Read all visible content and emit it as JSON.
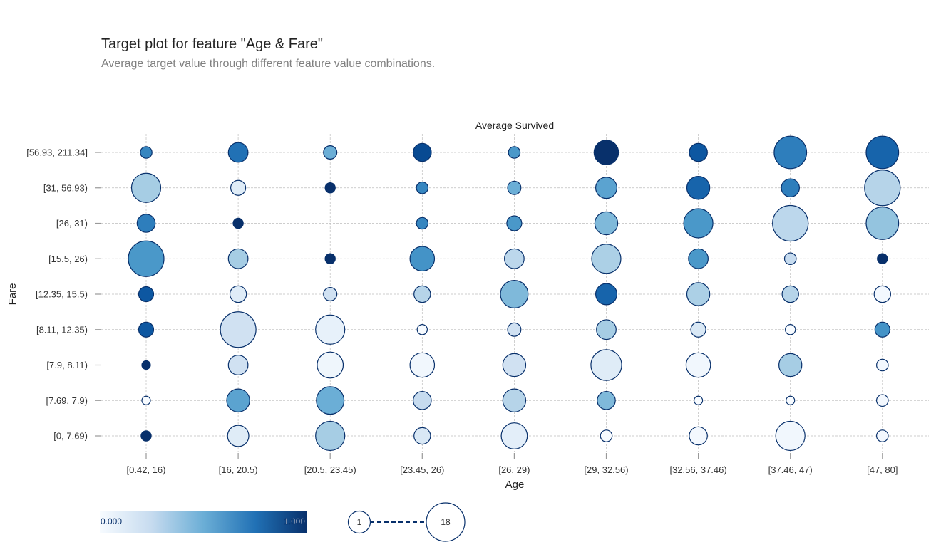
{
  "chart_data": {
    "type": "scatter",
    "title": "Target plot for feature \"Age & Fare\"",
    "subtitle": "Average target value through different feature value combinations.",
    "top_label": "Average Survived",
    "xlabel": "Age",
    "ylabel": "Fare",
    "x_categories": [
      "[0.42, 16)",
      "[16, 20.5)",
      "[20.5, 23.45)",
      "[23.45, 26)",
      "[26, 29)",
      "[29, 32.56)",
      "[32.56, 37.46)",
      "[37.46, 47)",
      "[47, 80]"
    ],
    "y_categories": [
      "[0, 7.69)",
      "[7.69, 7.9)",
      "[7.9, 8.11)",
      "[8.11, 12.35)",
      "[12.35, 15.5)",
      "[15.5, 26)",
      "[26, 31)",
      "[31, 56.93)",
      "[56.93, 211.34]"
    ],
    "color_scale": {
      "min": 0.0,
      "max": 1.0,
      "min_label": "0.000",
      "max_label": "1.000",
      "low_color": "#f7fbff",
      "high_color": "#08306b"
    },
    "size_scale": {
      "min": 1,
      "max": 18,
      "min_label": "1",
      "max_label": "18"
    },
    "grid": true,
    "points": [
      {
        "x": "[0.42, 16)",
        "y": "[0, 7.69)",
        "value": 1.0,
        "count": 2
      },
      {
        "x": "[0.42, 16)",
        "y": "[7.69, 7.9)",
        "value": 0.0,
        "count": 1
      },
      {
        "x": "[0.42, 16)",
        "y": "[7.9, 8.11)",
        "value": 1.0,
        "count": 1
      },
      {
        "x": "[0.42, 16)",
        "y": "[8.11, 12.35)",
        "value": 0.85,
        "count": 5
      },
      {
        "x": "[0.42, 16)",
        "y": "[12.35, 15.5)",
        "value": 0.85,
        "count": 5
      },
      {
        "x": "[0.42, 16)",
        "y": "[15.5, 26)",
        "value": 0.6,
        "count": 18
      },
      {
        "x": "[0.42, 16)",
        "y": "[26, 31)",
        "value": 0.7,
        "count": 7
      },
      {
        "x": "[0.42, 16)",
        "y": "[31, 56.93)",
        "value": 0.35,
        "count": 14
      },
      {
        "x": "[0.42, 16)",
        "y": "[56.93, 211.34]",
        "value": 0.67,
        "count": 3
      },
      {
        "x": "[16, 20.5)",
        "y": "[0, 7.69)",
        "value": 0.12,
        "count": 9
      },
      {
        "x": "[16, 20.5)",
        "y": "[7.69, 7.9)",
        "value": 0.55,
        "count": 10
      },
      {
        "x": "[16, 20.5)",
        "y": "[7.9, 8.11)",
        "value": 0.2,
        "count": 8
      },
      {
        "x": "[16, 20.5)",
        "y": "[8.11, 12.35)",
        "value": 0.2,
        "count": 18
      },
      {
        "x": "[16, 20.5)",
        "y": "[12.35, 15.5)",
        "value": 0.12,
        "count": 6
      },
      {
        "x": "[16, 20.5)",
        "y": "[15.5, 26)",
        "value": 0.35,
        "count": 8
      },
      {
        "x": "[16, 20.5)",
        "y": "[26, 31)",
        "value": 1.0,
        "count": 2
      },
      {
        "x": "[16, 20.5)",
        "y": "[31, 56.93)",
        "value": 0.12,
        "count": 5
      },
      {
        "x": "[16, 20.5)",
        "y": "[56.93, 211.34]",
        "value": 0.75,
        "count": 8
      },
      {
        "x": "[20.5, 23.45)",
        "y": "[0, 7.69)",
        "value": 0.35,
        "count": 14
      },
      {
        "x": "[20.5, 23.45)",
        "y": "[7.69, 7.9)",
        "value": 0.5,
        "count": 13
      },
      {
        "x": "[20.5, 23.45)",
        "y": "[7.9, 8.11)",
        "value": 0.04,
        "count": 12
      },
      {
        "x": "[20.5, 23.45)",
        "y": "[8.11, 12.35)",
        "value": 0.08,
        "count": 14
      },
      {
        "x": "[20.5, 23.45)",
        "y": "[12.35, 15.5)",
        "value": 0.2,
        "count": 4
      },
      {
        "x": "[20.5, 23.45)",
        "y": "[15.5, 26)",
        "value": 1.0,
        "count": 2
      },
      {
        "x": "[20.5, 23.45)",
        "y": "[31, 56.93)",
        "value": 1.0,
        "count": 2
      },
      {
        "x": "[20.5, 23.45)",
        "y": "[56.93, 211.34]",
        "value": 0.5,
        "count": 4
      },
      {
        "x": "[23.45, 26)",
        "y": "[0, 7.69)",
        "value": 0.15,
        "count": 6
      },
      {
        "x": "[23.45, 26)",
        "y": "[7.69, 7.9)",
        "value": 0.25,
        "count": 7
      },
      {
        "x": "[23.45, 26)",
        "y": "[7.9, 8.11)",
        "value": 0.03,
        "count": 11
      },
      {
        "x": "[23.45, 26)",
        "y": "[8.11, 12.35)",
        "value": 0.0,
        "count": 2
      },
      {
        "x": "[23.45, 26)",
        "y": "[12.35, 15.5)",
        "value": 0.3,
        "count": 6
      },
      {
        "x": "[23.45, 26)",
        "y": "[15.5, 26)",
        "value": 0.62,
        "count": 11
      },
      {
        "x": "[23.45, 26)",
        "y": "[26, 31)",
        "value": 0.67,
        "count": 3
      },
      {
        "x": "[23.45, 26)",
        "y": "[31, 56.93)",
        "value": 0.67,
        "count": 3
      },
      {
        "x": "[23.45, 26)",
        "y": "[56.93, 211.34]",
        "value": 0.9,
        "count": 7
      },
      {
        "x": "[26, 29)",
        "y": "[0, 7.69)",
        "value": 0.1,
        "count": 12
      },
      {
        "x": "[26, 29)",
        "y": "[7.69, 7.9)",
        "value": 0.3,
        "count": 10
      },
      {
        "x": "[26, 29)",
        "y": "[7.9, 8.11)",
        "value": 0.2,
        "count": 10
      },
      {
        "x": "[26, 29)",
        "y": "[8.11, 12.35)",
        "value": 0.2,
        "count": 4
      },
      {
        "x": "[26, 29)",
        "y": "[12.35, 15.5)",
        "value": 0.45,
        "count": 13
      },
      {
        "x": "[26, 29)",
        "y": "[15.5, 26)",
        "value": 0.28,
        "count": 8
      },
      {
        "x": "[26, 29)",
        "y": "[26, 31)",
        "value": 0.6,
        "count": 5
      },
      {
        "x": "[26, 29)",
        "y": "[31, 56.93)",
        "value": 0.5,
        "count": 4
      },
      {
        "x": "[26, 29)",
        "y": "[56.93, 211.34]",
        "value": 0.6,
        "count": 3
      },
      {
        "x": "[29, 32.56)",
        "y": "[0, 7.69)",
        "value": 0.0,
        "count": 3
      },
      {
        "x": "[29, 32.56)",
        "y": "[7.69, 7.9)",
        "value": 0.45,
        "count": 7
      },
      {
        "x": "[29, 32.56)",
        "y": "[7.9, 8.11)",
        "value": 0.12,
        "count": 15
      },
      {
        "x": "[29, 32.56)",
        "y": "[8.11, 12.35)",
        "value": 0.35,
        "count": 8
      },
      {
        "x": "[29, 32.56)",
        "y": "[12.35, 15.5)",
        "value": 0.8,
        "count": 9
      },
      {
        "x": "[29, 32.56)",
        "y": "[15.5, 26)",
        "value": 0.33,
        "count": 14
      },
      {
        "x": "[29, 32.56)",
        "y": "[26, 31)",
        "value": 0.45,
        "count": 10
      },
      {
        "x": "[29, 32.56)",
        "y": "[31, 56.93)",
        "value": 0.55,
        "count": 9
      },
      {
        "x": "[29, 32.56)",
        "y": "[56.93, 211.34]",
        "value": 1.0,
        "count": 11
      },
      {
        "x": "[32.56, 37.46)",
        "y": "[0, 7.69)",
        "value": 0.02,
        "count": 7
      },
      {
        "x": "[32.56, 37.46)",
        "y": "[7.69, 7.9)",
        "value": 0.0,
        "count": 1
      },
      {
        "x": "[32.56, 37.46)",
        "y": "[7.9, 8.11)",
        "value": 0.03,
        "count": 11
      },
      {
        "x": "[32.56, 37.46)",
        "y": "[8.11, 12.35)",
        "value": 0.15,
        "count": 5
      },
      {
        "x": "[32.56, 37.46)",
        "y": "[12.35, 15.5)",
        "value": 0.33,
        "count": 10
      },
      {
        "x": "[32.56, 37.46)",
        "y": "[15.5, 26)",
        "value": 0.6,
        "count": 8
      },
      {
        "x": "[32.56, 37.46)",
        "y": "[26, 31)",
        "value": 0.6,
        "count": 14
      },
      {
        "x": "[32.56, 37.46)",
        "y": "[31, 56.93)",
        "value": 0.8,
        "count": 10
      },
      {
        "x": "[32.56, 37.46)",
        "y": "[56.93, 211.34]",
        "value": 0.85,
        "count": 7
      },
      {
        "x": "[37.46, 47)",
        "y": "[0, 7.69)",
        "value": 0.03,
        "count": 14
      },
      {
        "x": "[37.46, 47)",
        "y": "[7.69, 7.9)",
        "value": 0.0,
        "count": 1
      },
      {
        "x": "[37.46, 47)",
        "y": "[7.9, 8.11)",
        "value": 0.35,
        "count": 10
      },
      {
        "x": "[37.46, 47)",
        "y": "[8.11, 12.35)",
        "value": 0.0,
        "count": 2
      },
      {
        "x": "[37.46, 47)",
        "y": "[12.35, 15.5)",
        "value": 0.3,
        "count": 6
      },
      {
        "x": "[37.46, 47)",
        "y": "[15.5, 26)",
        "value": 0.25,
        "count": 3
      },
      {
        "x": "[37.46, 47)",
        "y": "[26, 31)",
        "value": 0.28,
        "count": 18
      },
      {
        "x": "[37.46, 47)",
        "y": "[31, 56.93)",
        "value": 0.7,
        "count": 7
      },
      {
        "x": "[37.46, 47)",
        "y": "[56.93, 211.34]",
        "value": 0.7,
        "count": 16
      },
      {
        "x": "[47, 80]",
        "y": "[0, 7.69)",
        "value": 0.02,
        "count": 3
      },
      {
        "x": "[47, 80]",
        "y": "[7.69, 7.9)",
        "value": 0.02,
        "count": 3
      },
      {
        "x": "[47, 80]",
        "y": "[7.9, 8.11)",
        "value": 0.02,
        "count": 3
      },
      {
        "x": "[47, 80]",
        "y": "[8.11, 12.35)",
        "value": 0.62,
        "count": 5
      },
      {
        "x": "[47, 80]",
        "y": "[12.35, 15.5)",
        "value": 0.02,
        "count": 6
      },
      {
        "x": "[47, 80]",
        "y": "[15.5, 26)",
        "value": 1.0,
        "count": 2
      },
      {
        "x": "[47, 80]",
        "y": "[26, 31)",
        "value": 0.4,
        "count": 16
      },
      {
        "x": "[47, 80]",
        "y": "[31, 56.93)",
        "value": 0.3,
        "count": 18
      },
      {
        "x": "[47, 80]",
        "y": "[56.93, 211.34]",
        "value": 0.8,
        "count": 16
      }
    ]
  }
}
